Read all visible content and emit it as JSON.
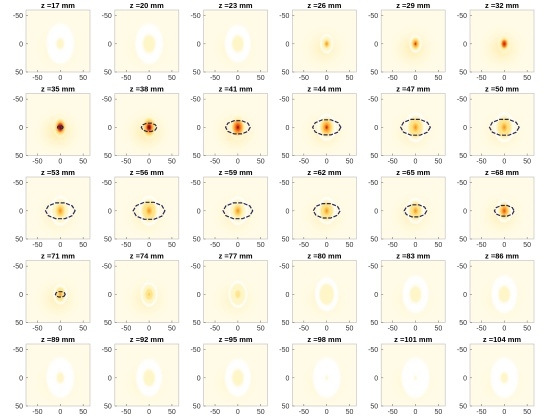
{
  "chart_data": {
    "type": "heatmap",
    "grid_rows": 5,
    "grid_cols": 6,
    "colormap": [
      "#ffffff",
      "#fff6c8",
      "#ffe58a",
      "#ffc24a",
      "#ff8a1f",
      "#e8461a",
      "#b3121c",
      "#6a0a2a",
      "#2c1236"
    ],
    "contour_color": "#1f2a66",
    "x_ticks": [
      "-50",
      "0",
      "50"
    ],
    "y_ticks": [
      "-50",
      "0",
      "50"
    ],
    "x_range": [
      -75,
      65
    ],
    "y_range": [
      -60,
      50
    ],
    "panels": [
      {
        "label": "z =17 mm",
        "intensity": 0.1,
        "spread": 30,
        "contour": 0
      },
      {
        "label": "z =20 mm",
        "intensity": 0.12,
        "spread": 30,
        "contour": 0
      },
      {
        "label": "z =23 mm",
        "intensity": 0.15,
        "spread": 28,
        "contour": 0
      },
      {
        "label": "z =26 mm",
        "intensity": 0.45,
        "spread": 14,
        "contour": 0
      },
      {
        "label": "z =29 mm",
        "intensity": 0.7,
        "spread": 13,
        "contour": 0
      },
      {
        "label": "z =32 mm",
        "intensity": 0.8,
        "spread": 13,
        "contour": 0
      },
      {
        "label": "z =35 mm",
        "intensity": 1.0,
        "spread": 14,
        "contour": 0.08
      },
      {
        "label": "z =38 mm",
        "intensity": 0.97,
        "spread": 16,
        "contour": 0.22
      },
      {
        "label": "z =41 mm",
        "intensity": 0.85,
        "spread": 18,
        "contour": 0.35
      },
      {
        "label": "z =44 mm",
        "intensity": 0.7,
        "spread": 20,
        "contour": 0.4
      },
      {
        "label": "z =47 mm",
        "intensity": 0.55,
        "spread": 22,
        "contour": 0.42
      },
      {
        "label": "z =50 mm",
        "intensity": 0.5,
        "spread": 22,
        "contour": 0.42
      },
      {
        "label": "z =53 mm",
        "intensity": 0.45,
        "spread": 22,
        "contour": 0.42
      },
      {
        "label": "z =56 mm",
        "intensity": 0.5,
        "spread": 22,
        "contour": 0.45
      },
      {
        "label": "z =59 mm",
        "intensity": 0.45,
        "spread": 21,
        "contour": 0.42
      },
      {
        "label": "z =62 mm",
        "intensity": 0.5,
        "spread": 20,
        "contour": 0.38
      },
      {
        "label": "z =65 mm",
        "intensity": 0.55,
        "spread": 19,
        "contour": 0.32
      },
      {
        "label": "z =68 mm",
        "intensity": 0.6,
        "spread": 17,
        "contour": 0.28
      },
      {
        "label": "z =71 mm",
        "intensity": 0.55,
        "spread": 15,
        "contour": 0.14
      },
      {
        "label": "z =74 mm",
        "intensity": 0.4,
        "spread": 18,
        "contour": 0
      },
      {
        "label": "z =77 mm",
        "intensity": 0.3,
        "spread": 20,
        "contour": 0
      },
      {
        "label": "z =80 mm",
        "intensity": 0.18,
        "spread": 25,
        "contour": 0
      },
      {
        "label": "z =83 mm",
        "intensity": 0.12,
        "spread": 28,
        "contour": 0
      },
      {
        "label": "z =86 mm",
        "intensity": 0.14,
        "spread": 28,
        "contour": 0
      },
      {
        "label": "z =89 mm",
        "intensity": 0.1,
        "spread": 30,
        "contour": 0
      },
      {
        "label": "z =92 mm",
        "intensity": 0.12,
        "spread": 28,
        "contour": 0
      },
      {
        "label": "z =95 mm",
        "intensity": 0.12,
        "spread": 28,
        "contour": 0
      },
      {
        "label": "z =98 mm",
        "intensity": 0.08,
        "spread": 30,
        "contour": 0
      },
      {
        "label": "z =101 mm",
        "intensity": 0.07,
        "spread": 30,
        "contour": 0
      },
      {
        "label": "z =104 mm",
        "intensity": 0.09,
        "spread": 30,
        "contour": 0
      }
    ]
  }
}
